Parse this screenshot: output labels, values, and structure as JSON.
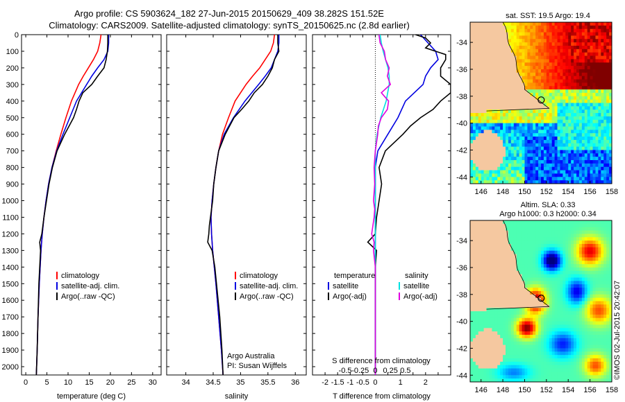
{
  "header": {
    "line1": "Argo profile: CS 5903624_182 27-Jun-2015 20150629_409 38.282S 151.52E",
    "line2": "Climatology: CARS2009. Satellite-adjusted climatology: synTS_20150625.nc (2.8d earlier)"
  },
  "credit": "©IMOS 02-Jul-2015 20:42:07",
  "colors": {
    "climatology": "#ff0000",
    "satellite": "#0000e0",
    "argo": "#000000",
    "sal_sat": "#00e0e0",
    "sal_argo": "#e000e0",
    "land": "#f5c8a0"
  },
  "chart_data": [
    {
      "type": "line",
      "id": "temperature",
      "xlabel": "temperature (deg C)",
      "ylabel": "",
      "xlim": [
        -1,
        32
      ],
      "ylim": [
        2050,
        0
      ],
      "xticks": [
        0,
        5,
        10,
        15,
        20,
        25,
        30
      ],
      "yticks": [
        0,
        100,
        200,
        300,
        400,
        500,
        600,
        700,
        800,
        900,
        1000,
        1100,
        1200,
        1300,
        1400,
        1500,
        1600,
        1700,
        1800,
        1900,
        2000
      ],
      "legend": [
        "climatology",
        "satellite-adj. clim.",
        "Argo(..raw -QC)"
      ],
      "series": [
        {
          "name": "climatology",
          "depth": [
            0,
            50,
            100,
            150,
            200,
            250,
            300,
            400,
            500,
            600,
            700,
            800,
            900,
            1000,
            1100,
            1200,
            1300,
            1500,
            1700,
            1900,
            2050
          ],
          "values": [
            17.8,
            17.5,
            17.0,
            16.0,
            14.8,
            13.6,
            12.5,
            10.8,
            9.5,
            8.3,
            7.2,
            6.2,
            5.4,
            4.8,
            4.3,
            3.9,
            3.6,
            3.2,
            2.9,
            2.7,
            2.5
          ]
        },
        {
          "name": "satellite-adj. clim.",
          "depth": [
            0,
            50,
            100,
            150,
            200,
            250,
            300,
            400,
            500,
            600,
            700,
            800,
            900,
            1000,
            1100,
            1200,
            1300,
            1500,
            1700,
            1900,
            2050
          ],
          "values": [
            19.6,
            19.6,
            19.4,
            18.5,
            17.0,
            15.6,
            14.4,
            12.0,
            10.4,
            8.8,
            7.3,
            6.2,
            5.4,
            4.8,
            4.3,
            3.9,
            3.6,
            3.2,
            2.9,
            2.7,
            2.5
          ]
        },
        {
          "name": "Argo(..raw -QC)",
          "depth": [
            0,
            50,
            100,
            150,
            200,
            250,
            300,
            350,
            400,
            450,
            500,
            600,
            700,
            800,
            900,
            1000,
            1100,
            1200,
            1250,
            1300,
            1400,
            1500,
            1700,
            1900,
            2050
          ],
          "values": [
            19.4,
            19.4,
            19.3,
            19.0,
            18.5,
            17.0,
            15.6,
            13.5,
            12.6,
            12.0,
            11.3,
            9.2,
            7.4,
            6.3,
            5.5,
            4.9,
            4.3,
            3.8,
            3.3,
            3.5,
            3.3,
            3.1,
            2.9,
            2.7,
            2.5
          ]
        }
      ]
    },
    {
      "type": "line",
      "id": "salinity",
      "xlabel": "salinity",
      "ylabel": "",
      "xlim": [
        33.65,
        36.2
      ],
      "ylim": [
        2050,
        0
      ],
      "xticks": [
        34,
        34.5,
        35,
        35.5,
        36
      ],
      "legend": [
        "climatology",
        "satellite-adj. clim.",
        "Argo(..raw -QC)"
      ],
      "annotations": [
        "Argo Australia",
        "PI: Susan Wijffels"
      ],
      "series": [
        {
          "name": "climatology",
          "depth": [
            0,
            50,
            100,
            150,
            200,
            250,
            300,
            400,
            500,
            600,
            700,
            800,
            900,
            1000,
            1100,
            1200,
            1300,
            1500,
            1700,
            1900,
            2050
          ],
          "values": [
            35.62,
            35.6,
            35.55,
            35.45,
            35.35,
            35.22,
            35.1,
            34.9,
            34.78,
            34.67,
            34.6,
            34.55,
            34.51,
            34.48,
            34.46,
            34.47,
            34.49,
            34.55,
            34.6,
            34.65,
            34.68
          ]
        },
        {
          "name": "satellite-adj. clim.",
          "depth": [
            0,
            50,
            100,
            150,
            200,
            250,
            300,
            400,
            500,
            600,
            700,
            800,
            900,
            1000,
            1100,
            1200,
            1300,
            1500,
            1700,
            1900,
            2050
          ],
          "values": [
            35.7,
            35.7,
            35.68,
            35.62,
            35.56,
            35.45,
            35.33,
            35.08,
            34.87,
            34.7,
            34.6,
            34.55,
            34.51,
            34.48,
            34.46,
            34.47,
            34.49,
            34.55,
            34.6,
            34.65,
            34.68
          ]
        },
        {
          "name": "Argo(..raw -QC)",
          "depth": [
            0,
            50,
            100,
            150,
            200,
            250,
            300,
            350,
            400,
            450,
            500,
            600,
            700,
            800,
            900,
            1000,
            1100,
            1150,
            1200,
            1250,
            1300,
            1400,
            1500,
            1700,
            1900,
            2050
          ],
          "values": [
            35.68,
            35.68,
            35.7,
            35.62,
            35.58,
            35.5,
            35.4,
            35.25,
            35.15,
            35.02,
            34.88,
            34.72,
            34.6,
            34.55,
            34.51,
            34.49,
            34.45,
            34.43,
            34.42,
            34.4,
            34.48,
            34.53,
            34.56,
            34.62,
            34.66,
            34.68
          ]
        }
      ]
    },
    {
      "type": "line",
      "id": "difference",
      "xlabel": "T difference from climatology",
      "xlabel2": "S difference from climatology",
      "xlim": [
        -2.5,
        3.0
      ],
      "ylim": [
        2050,
        0
      ],
      "xticks": [
        -2,
        -1.5,
        -1,
        -0.5,
        0,
        0.5,
        1,
        1.5,
        2,
        2.5
      ],
      "ticklabels_T": [
        "-2",
        "-1.5",
        "-1",
        "-0.5",
        "0",
        "1",
        "2"
      ],
      "ticklabels_S": [
        "-0.5",
        "-0.25",
        "0",
        "0.25",
        "0.5"
      ],
      "legend_temperature": {
        "title": "temperature",
        "items": [
          "satellite",
          "Argo(-adj)"
        ]
      },
      "legend_salinity": {
        "title": "salinity",
        "items": [
          "satellite",
          "Argo(-adj)"
        ]
      },
      "series": [
        {
          "name": "temperature satellite",
          "depth": [
            0,
            50,
            100,
            150,
            200,
            250,
            300,
            400,
            500,
            600,
            700,
            800,
            900,
            1000,
            1200,
            1500,
            2050
          ],
          "values": [
            1.8,
            2.1,
            2.4,
            2.5,
            2.2,
            2.0,
            1.9,
            1.2,
            0.9,
            0.5,
            0.1,
            0.0,
            0.0,
            0.0,
            0.0,
            0.0,
            0.0
          ]
        },
        {
          "name": "temperature Argo(-adj)",
          "depth": [
            0,
            20,
            50,
            80,
            100,
            120,
            150,
            200,
            250,
            300,
            350,
            400,
            450,
            500,
            550,
            600,
            700,
            800,
            900,
            1000,
            1100,
            1200,
            1250,
            1300,
            1400,
            1500,
            1700,
            2050
          ],
          "values": [
            1.6,
            2.0,
            2.2,
            2.0,
            2.4,
            2.8,
            2.8,
            2.6,
            2.6,
            3.0,
            3.0,
            2.6,
            2.3,
            1.8,
            1.4,
            1.1,
            0.4,
            0.15,
            0.25,
            0.15,
            0.05,
            0.0,
            -0.3,
            0.05,
            0.0,
            0.0,
            0.0,
            0.0
          ]
        },
        {
          "name": "salinity satellite",
          "depth": [
            0,
            50,
            100,
            150,
            200,
            250,
            300,
            400,
            500,
            600,
            700,
            800,
            900,
            1000,
            1200,
            1500,
            2050
          ],
          "values": [
            0.08,
            0.1,
            0.13,
            0.17,
            0.21,
            0.23,
            0.23,
            0.18,
            0.09,
            0.03,
            0.0,
            0.0,
            0.0,
            0.0,
            0.0,
            0.0,
            0.0
          ]
        },
        {
          "name": "salinity Argo(-adj)",
          "depth": [
            0,
            50,
            100,
            150,
            200,
            250,
            300,
            350,
            400,
            450,
            500,
            550,
            600,
            700,
            800,
            900,
            1000,
            1050,
            1100,
            1150,
            1200,
            1250,
            1300,
            1400,
            1500,
            2050
          ],
          "values": [
            0.06,
            0.08,
            0.15,
            0.17,
            0.23,
            0.2,
            0.25,
            0.1,
            0.22,
            0.2,
            0.1,
            0.05,
            0.04,
            0.0,
            -0.02,
            -0.01,
            -0.03,
            -0.01,
            -0.02,
            -0.04,
            -0.06,
            -0.02,
            -0.03,
            0.0,
            0.0,
            0.0
          ]
        }
      ]
    },
    {
      "type": "heatmap",
      "id": "map-sst",
      "title": "sat. SST: 19.5 Argo: 19.4",
      "xticks": [
        146,
        148,
        150,
        152,
        154,
        156,
        158
      ],
      "yticks": [
        -34,
        -36,
        -38,
        -40,
        -42,
        -44
      ],
      "xlim": [
        145,
        158
      ],
      "ylim": [
        -44.5,
        -32.5
      ],
      "float_position": {
        "lon": 151.52,
        "lat": -38.282
      }
    },
    {
      "type": "heatmap",
      "id": "map-sla",
      "title1": "Altim. SLA: 0.33",
      "title2": "Argo h1000: 0.3 h2000: 0.34",
      "xticks": [
        146,
        148,
        150,
        152,
        154,
        156,
        158
      ],
      "yticks": [
        -34,
        -36,
        -38,
        -40,
        -42,
        -44
      ],
      "xlim": [
        145,
        158
      ],
      "ylim": [
        -44.5,
        -32.5
      ],
      "float_position": {
        "lon": 151.52,
        "lat": -38.282
      }
    }
  ]
}
